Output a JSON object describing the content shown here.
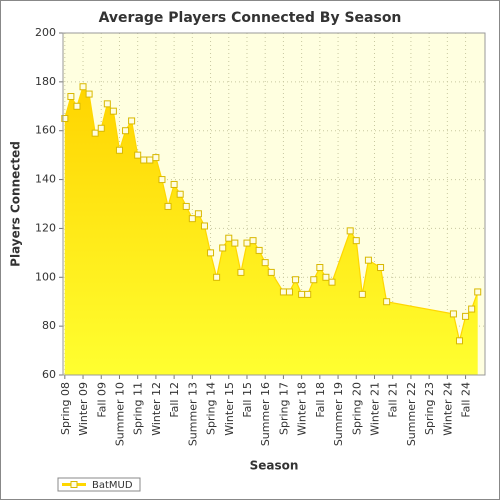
{
  "chart_data": {
    "type": "area-line",
    "title": "Average Players Connected By Season",
    "x_label": "Season",
    "y_label": "Players Connected",
    "x": [
      0,
      1,
      2,
      3,
      4,
      5,
      6,
      7,
      8,
      9,
      10,
      11,
      12,
      13,
      14,
      15,
      16,
      17,
      18,
      19,
      20,
      21,
      22,
      23,
      24,
      25,
      26,
      27,
      28,
      29,
      30,
      31,
      32,
      33,
      34,
      36,
      37,
      38,
      39,
      40,
      41,
      42,
      43,
      44,
      47,
      48,
      49,
      50,
      52,
      53,
      64,
      65,
      66,
      67,
      68
    ],
    "series": [
      {
        "name": "BatMUD",
        "color": "#ffd700",
        "values": [
          165,
          174,
          170,
          178,
          175,
          159,
          161,
          171,
          168,
          152,
          160,
          164,
          150,
          148,
          148,
          149,
          140,
          129,
          138,
          134,
          129,
          124,
          126,
          121,
          110,
          100,
          112,
          116,
          114,
          102,
          114,
          115,
          111,
          106,
          102,
          94,
          94,
          99,
          93,
          93,
          99,
          104,
          100,
          98,
          119,
          115,
          93,
          107,
          104,
          90,
          85,
          74,
          84,
          87,
          94
        ]
      }
    ],
    "xlim": [
      -0.3,
      69.2
    ],
    "xticks": [
      {
        "value": 0,
        "label": "Spring 08"
      },
      {
        "value": 3,
        "label": "Winter 09"
      },
      {
        "value": 6,
        "label": "Fall 09"
      },
      {
        "value": 9,
        "label": "Summer 10"
      },
      {
        "value": 12,
        "label": "Spring 11"
      },
      {
        "value": 15,
        "label": "Winter 12"
      },
      {
        "value": 18,
        "label": "Fall 12"
      },
      {
        "value": 21,
        "label": "Summer 13"
      },
      {
        "value": 24,
        "label": "Spring 14"
      },
      {
        "value": 27,
        "label": "Winter 15"
      },
      {
        "value": 30,
        "label": "Fall 15"
      },
      {
        "value": 33,
        "label": "Summer 16"
      },
      {
        "value": 36,
        "label": "Spring 17"
      },
      {
        "value": 39,
        "label": "Winter 18"
      },
      {
        "value": 42,
        "label": "Fall 18"
      },
      {
        "value": 45,
        "label": "Summer 19"
      },
      {
        "value": 48,
        "label": "Spring 20"
      },
      {
        "value": 51,
        "label": "Winter 21"
      },
      {
        "value": 54,
        "label": "Fall 21"
      },
      {
        "value": 57,
        "label": "Summer 22"
      },
      {
        "value": 60,
        "label": "Spring 23"
      },
      {
        "value": 63,
        "label": "Winter 24"
      },
      {
        "value": 66,
        "label": "Fall 24"
      }
    ],
    "ylim": [
      60,
      200
    ],
    "yticks": [
      60,
      80,
      100,
      120,
      140,
      160,
      180,
      200
    ],
    "grid": true,
    "legend": "bottom-left"
  }
}
